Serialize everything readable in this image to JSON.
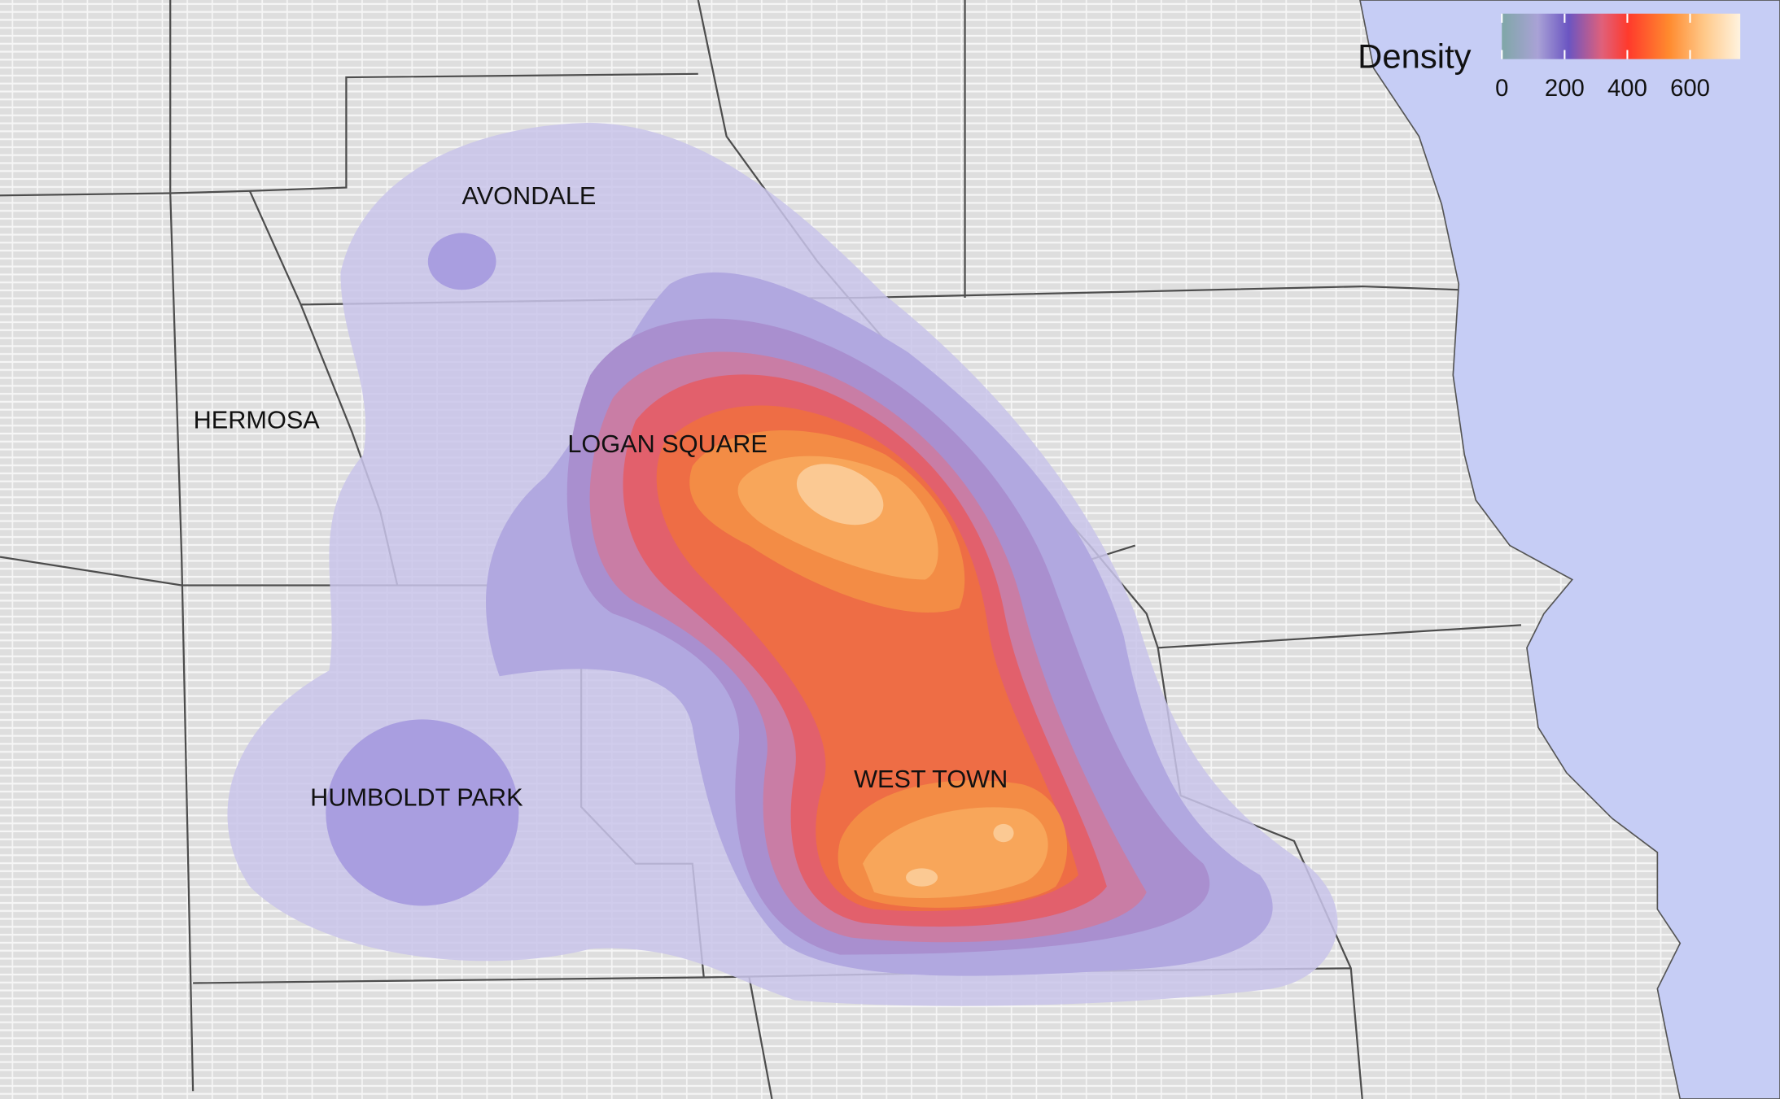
{
  "legend": {
    "title": "Density",
    "range": [
      0,
      760
    ],
    "ticks": [
      0,
      200,
      400,
      600
    ]
  },
  "labels": [
    "AVONDALE",
    "HERMOSA",
    "LOGAN SQUARE",
    "HUMBOLDT PARK",
    "WEST TOWN"
  ]
}
